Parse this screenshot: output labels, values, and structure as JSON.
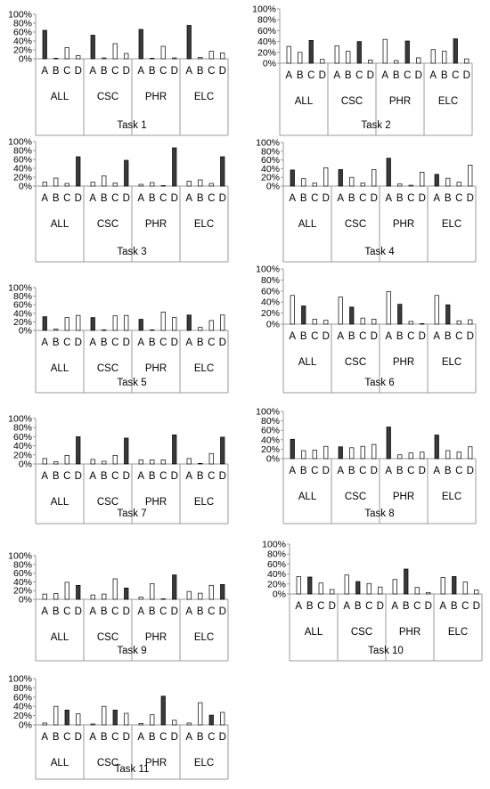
{
  "chart_data": [
    {
      "type": "bar",
      "title": "Task 1",
      "groups": [
        "ALL",
        "CSC",
        "PHR",
        "ELC"
      ],
      "options": [
        "A",
        "B",
        "C",
        "D"
      ],
      "ylim": [
        0,
        100
      ],
      "yticks": [
        "0%",
        "20%",
        "40%",
        "60%",
        "80%",
        "100%"
      ],
      "values": [
        [
          64,
          1,
          25,
          7
        ],
        [
          53,
          2,
          34,
          12
        ],
        [
          66,
          1,
          28,
          2
        ],
        [
          75,
          3,
          17,
          13
        ]
      ],
      "correct": "A"
    },
    {
      "type": "bar",
      "title": "Task 2",
      "groups": [
        "ALL",
        "CSC",
        "PHR",
        "ELC"
      ],
      "options": [
        "A",
        "B",
        "C",
        "D"
      ],
      "ylim": [
        0,
        100
      ],
      "yticks": [
        "0%",
        "20%",
        "40%",
        "60%",
        "80%",
        "100%"
      ],
      "values": [
        [
          31,
          20,
          42,
          7
        ],
        [
          32,
          22,
          40,
          6
        ],
        [
          44,
          5,
          41,
          10
        ],
        [
          25,
          22,
          45,
          8
        ]
      ],
      "correct": "C"
    },
    {
      "type": "bar",
      "title": "Task 3",
      "groups": [
        "ALL",
        "CSC",
        "PHR",
        "ELC"
      ],
      "options": [
        "A",
        "B",
        "C",
        "D"
      ],
      "ylim": [
        0,
        100
      ],
      "yticks": [
        "0%",
        "20%",
        "40%",
        "60%",
        "80%",
        "100%"
      ],
      "values": [
        [
          9,
          18,
          6,
          66
        ],
        [
          9,
          23,
          7,
          58
        ],
        [
          4,
          8,
          0,
          86
        ],
        [
          11,
          14,
          6,
          66
        ]
      ],
      "correct": "D"
    },
    {
      "type": "bar",
      "title": "Task 4",
      "groups": [
        "ALL",
        "CSC",
        "PHR",
        "ELC"
      ],
      "options": [
        "A",
        "B",
        "C",
        "D"
      ],
      "ylim": [
        0,
        100
      ],
      "yticks": [
        "0%",
        "20%",
        "40%",
        "60%",
        "80%",
        "100%"
      ],
      "values": [
        [
          37,
          17,
          7,
          42
        ],
        [
          38,
          20,
          7,
          38
        ],
        [
          64,
          5,
          2,
          32
        ],
        [
          27,
          18,
          9,
          48
        ]
      ],
      "correct": "A"
    },
    {
      "type": "bar",
      "title": "Task 5",
      "groups": [
        "ALL",
        "CSC",
        "PHR",
        "ELC"
      ],
      "options": [
        "A",
        "B",
        "C",
        "D"
      ],
      "ylim": [
        0,
        100
      ],
      "yticks": [
        "0%",
        "20%",
        "40%",
        "60%",
        "80%",
        "100%"
      ],
      "values": [
        [
          32,
          3,
          30,
          35
        ],
        [
          30,
          1,
          34,
          35
        ],
        [
          26,
          0,
          43,
          30
        ],
        [
          36,
          7,
          23,
          36
        ]
      ],
      "correct": "A"
    },
    {
      "type": "bar",
      "title": "Task 6",
      "groups": [
        "ALL",
        "CSC",
        "PHR",
        "ELC"
      ],
      "options": [
        "A",
        "B",
        "C",
        "D"
      ],
      "ylim": [
        0,
        100
      ],
      "yticks": [
        "0%",
        "20%",
        "40%",
        "60%",
        "80%",
        "100%"
      ],
      "values": [
        [
          52,
          33,
          9,
          7
        ],
        [
          49,
          31,
          11,
          9
        ],
        [
          59,
          36,
          5,
          0
        ],
        [
          52,
          35,
          6,
          8
        ]
      ],
      "correct": "B"
    },
    {
      "type": "bar",
      "title": "Task 7",
      "groups": [
        "ALL",
        "CSC",
        "PHR",
        "ELC"
      ],
      "options": [
        "A",
        "B",
        "C",
        "D"
      ],
      "ylim": [
        0,
        100
      ],
      "yticks": [
        "0%",
        "20%",
        "40%",
        "60%",
        "80%",
        "100%"
      ],
      "values": [
        [
          12,
          5,
          19,
          60
        ],
        [
          10,
          6,
          19,
          57
        ],
        [
          9,
          9,
          9,
          64
        ],
        [
          12,
          1,
          23,
          59
        ]
      ],
      "correct": "D"
    },
    {
      "type": "bar",
      "title": "Task 8",
      "groups": [
        "ALL",
        "CSC",
        "PHR",
        "ELC"
      ],
      "options": [
        "A",
        "B",
        "C",
        "D"
      ],
      "ylim": [
        0,
        100
      ],
      "yticks": [
        "0%",
        "20%",
        "40%",
        "60%",
        "80%",
        "100%"
      ],
      "values": [
        [
          41,
          17,
          18,
          26
        ],
        [
          25,
          23,
          26,
          30
        ],
        [
          67,
          8,
          12,
          14
        ],
        [
          50,
          17,
          14,
          25
        ]
      ],
      "correct": "A"
    },
    {
      "type": "bar",
      "title": "Task 9",
      "groups": [
        "ALL",
        "CSC",
        "PHR",
        "ELC"
      ],
      "options": [
        "A",
        "B",
        "C",
        "D"
      ],
      "ylim": [
        0,
        100
      ],
      "yticks": [
        "0%",
        "20%",
        "40%",
        "60%",
        "80%",
        "100%"
      ],
      "values": [
        [
          12,
          13,
          39,
          32
        ],
        [
          10,
          12,
          47,
          26
        ],
        [
          5,
          36,
          0,
          56
        ],
        [
          18,
          14,
          32,
          34
        ]
      ],
      "correct": "D"
    },
    {
      "type": "bar",
      "title": "Task 10",
      "groups": [
        "ALL",
        "CSC",
        "PHR",
        "ELC"
      ],
      "options": [
        "A",
        "B",
        "C",
        "D"
      ],
      "ylim": [
        0,
        100
      ],
      "yticks": [
        "0%",
        "20%",
        "40%",
        "60%",
        "80%",
        "100%"
      ],
      "values": [
        [
          35,
          34,
          22,
          9
        ],
        [
          38,
          25,
          21,
          14
        ],
        [
          29,
          50,
          13,
          3
        ],
        [
          33,
          35,
          24,
          8
        ]
      ],
      "correct": "B"
    },
    {
      "type": "bar",
      "title": "Task 11",
      "groups": [
        "ALL",
        "CSC",
        "PHR",
        "ELC"
      ],
      "options": [
        "A",
        "B",
        "C",
        "D"
      ],
      "ylim": [
        0,
        100
      ],
      "yticks": [
        "0%",
        "20%",
        "40%",
        "60%",
        "80%",
        "100%"
      ],
      "values": [
        [
          4,
          40,
          32,
          24
        ],
        [
          2,
          40,
          32,
          25
        ],
        [
          3,
          22,
          62,
          10
        ],
        [
          4,
          48,
          21,
          27
        ]
      ],
      "correct": "C"
    }
  ],
  "colors": {
    "correct_bar": "#3a3a3a",
    "other_bar": "#ffffff",
    "outline": "#000000",
    "frame": "#9a9a9a"
  }
}
